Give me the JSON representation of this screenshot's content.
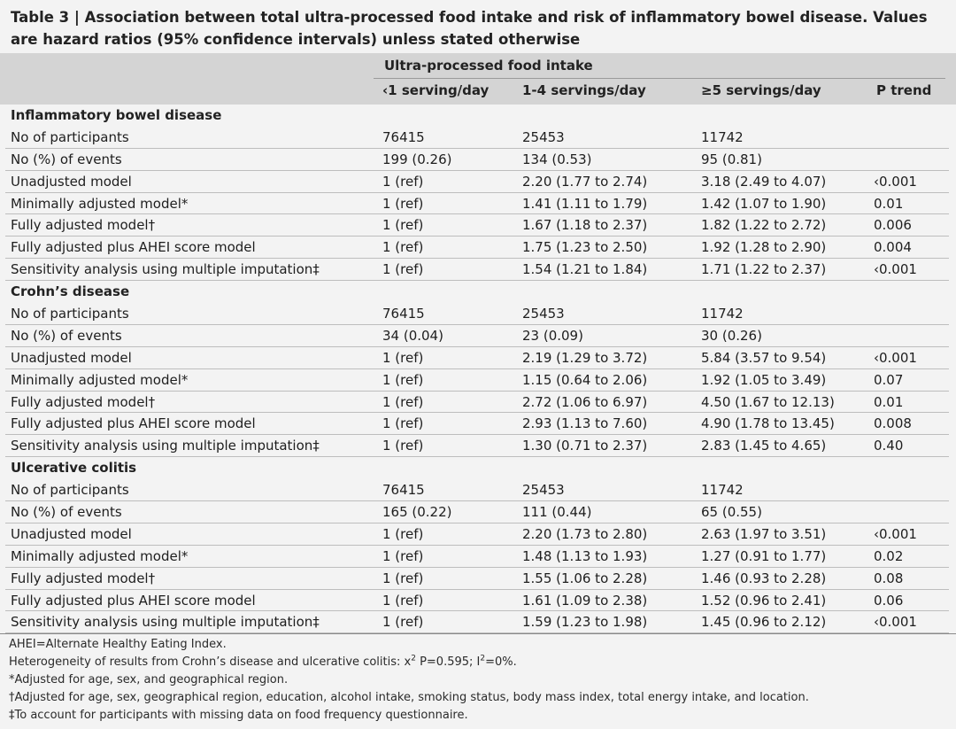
{
  "table": {
    "title": "Table 3 | Association between total ultra-processed food intake and risk of inflammatory bowel disease. Values are hazard ratios (95% confidence intervals) unless stated otherwise",
    "group_header": "Ultra-processed food intake",
    "columns": [
      "‹1 serving/day",
      "1-4 servings/day",
      "≥5 servings/day",
      "P trend"
    ],
    "sections": [
      {
        "name": "Inflammatory bowel disease",
        "rows": [
          [
            "No of participants",
            "76415",
            "25453",
            "11742",
            ""
          ],
          [
            "No (%) of events",
            "199 (0.26)",
            "134 (0.53)",
            "95 (0.81)",
            ""
          ],
          [
            "Unadjusted model",
            "1 (ref)",
            "2.20 (1.77 to 2.74)",
            "3.18 (2.49 to 4.07)",
            "‹0.001"
          ],
          [
            "Minimally adjusted model*",
            "1 (ref)",
            "1.41 (1.11 to 1.79)",
            "1.42 (1.07 to 1.90)",
            "0.01"
          ],
          [
            "Fully adjusted model†",
            "1 (ref)",
            "1.67 (1.18 to 2.37)",
            "1.82 (1.22 to 2.72)",
            "0.006"
          ],
          [
            "Fully adjusted plus AHEI score model",
            "1 (ref)",
            "1.75 (1.23 to 2.50)",
            "1.92 (1.28 to 2.90)",
            "0.004"
          ],
          [
            "Sensitivity analysis using multiple imputation‡",
            "1 (ref)",
            "1.54 (1.21 to 1.84)",
            "1.71 (1.22 to 2.37)",
            "‹0.001"
          ]
        ]
      },
      {
        "name": "Crohn’s disease",
        "rows": [
          [
            "No of participants",
            "76415",
            "25453",
            "11742",
            ""
          ],
          [
            "No (%) of events",
            "34 (0.04)",
            "23 (0.09)",
            "30 (0.26)",
            ""
          ],
          [
            "Unadjusted model",
            "1 (ref)",
            "2.19 (1.29 to 3.72)",
            "5.84 (3.57 to 9.54)",
            "‹0.001"
          ],
          [
            "Minimally adjusted model*",
            "1 (ref)",
            "1.15 (0.64 to 2.06)",
            "1.92 (1.05 to 3.49)",
            "0.07"
          ],
          [
            "Fully adjusted model†",
            "1 (ref)",
            "2.72 (1.06 to 6.97)",
            "4.50 (1.67 to 12.13)",
            "0.01"
          ],
          [
            "Fully adjusted plus AHEI score model",
            "1 (ref)",
            "2.93 (1.13 to 7.60)",
            "4.90 (1.78 to 13.45)",
            "0.008"
          ],
          [
            "Sensitivity analysis using multiple imputation‡",
            "1 (ref)",
            "1.30 (0.71 to 2.37)",
            "2.83 (1.45 to 4.65)",
            "0.40"
          ]
        ]
      },
      {
        "name": "Ulcerative colitis",
        "rows": [
          [
            "No of participants",
            "76415",
            "25453",
            "11742",
            ""
          ],
          [
            "No (%) of events",
            "165 (0.22)",
            "111 (0.44)",
            "65 (0.55)",
            ""
          ],
          [
            "Unadjusted model",
            "1 (ref)",
            "2.20 (1.73 to 2.80)",
            "2.63 (1.97 to 3.51)",
            "‹0.001"
          ],
          [
            "Minimally adjusted model*",
            "1 (ref)",
            "1.48 (1.13 to 1.93)",
            "1.27 (0.91 to 1.77)",
            "0.02"
          ],
          [
            "Fully adjusted model†",
            "1 (ref)",
            "1.55 (1.06 to 2.28)",
            "1.46 (0.93 to 2.28)",
            "0.08"
          ],
          [
            "Fully adjusted plus AHEI score model",
            "1 (ref)",
            "1.61 (1.09 to 2.38)",
            "1.52 (0.96 to 2.41)",
            "0.06"
          ],
          [
            "Sensitivity analysis using multiple imputation‡",
            "1 (ref)",
            "1.59 (1.23 to 1.98)",
            "1.45 (0.96 to 2.12)",
            "‹0.001"
          ]
        ]
      }
    ]
  },
  "footnotes": {
    "ahei": "AHEI=Alternate Healthy Eating Index.",
    "heterogeneity_prefix": "Heterogeneity of results from Crohn’s disease and ulcerative colitis: x",
    "heterogeneity_p": "P=0.595; I",
    "heterogeneity_i2": "=0%.",
    "superscript": "2",
    "minimal": "*Adjusted for age, sex, and geographical region.",
    "full": "†Adjusted for age, sex, geographical region, education, alcohol intake, smoking status, body mass index, total energy intake, and location.",
    "imputation": "‡To account for participants with missing data on food frequency questionnaire."
  }
}
